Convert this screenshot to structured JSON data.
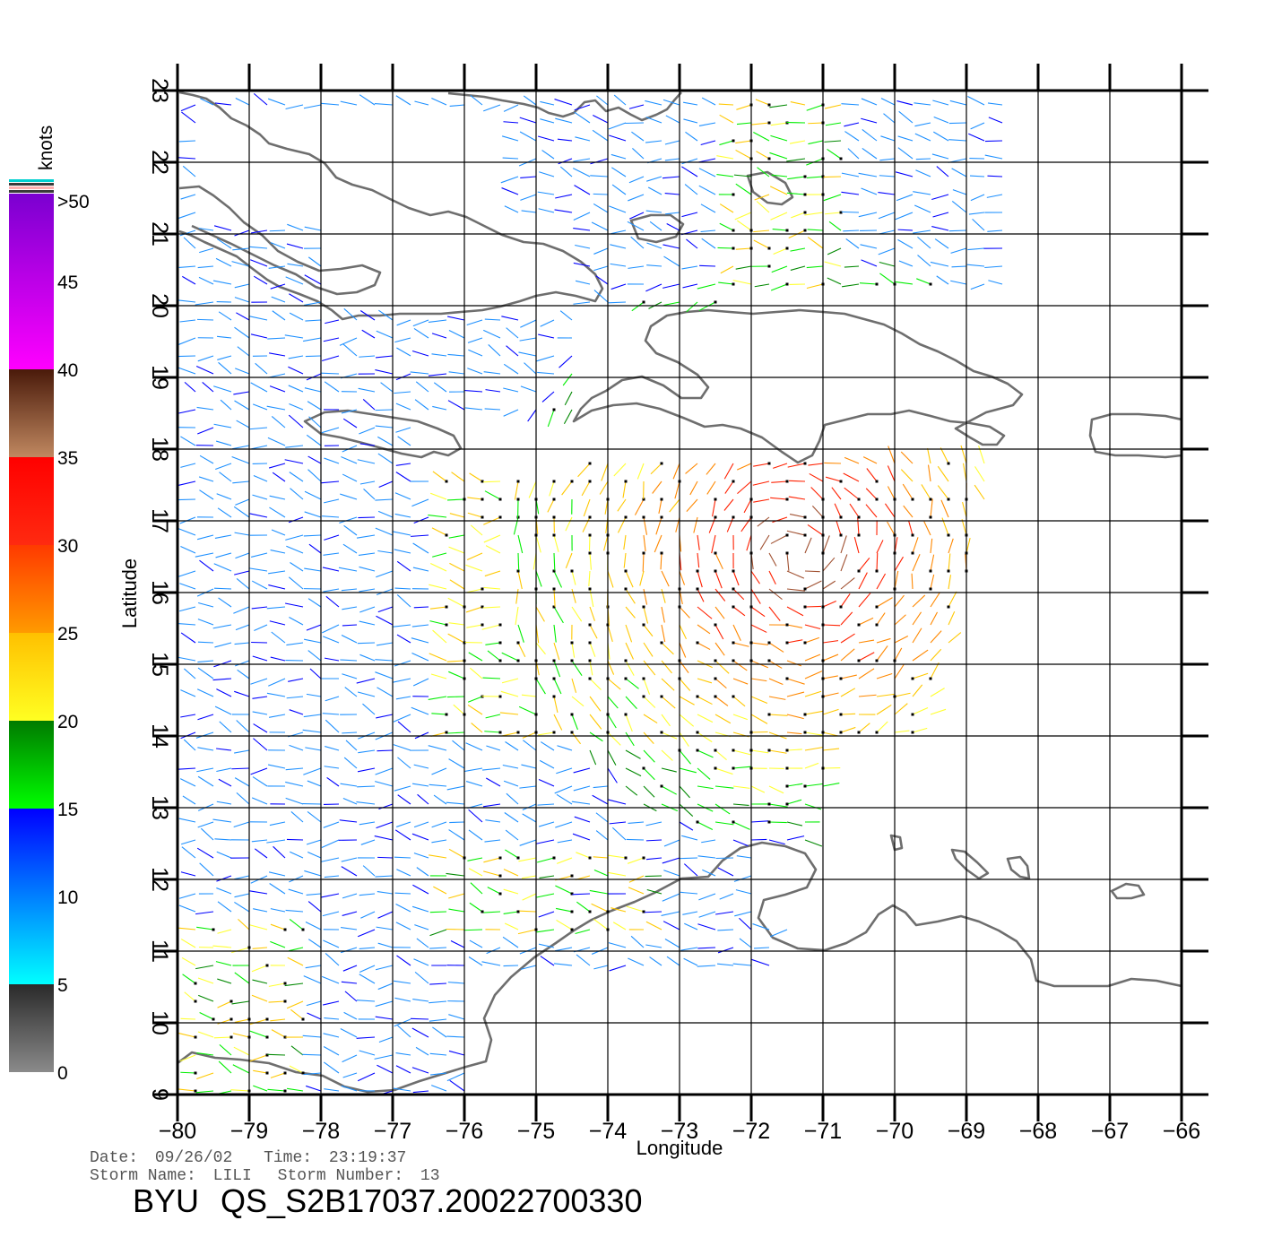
{
  "axes": {
    "x_title": "Longitude",
    "y_title": "Latitude",
    "lon_range": [
      -80,
      -66
    ],
    "lat_range": [
      9,
      23
    ],
    "x_ticks": [
      "−80",
      "−79",
      "−78",
      "−77",
      "−76",
      "−75",
      "−74",
      "−73",
      "−72",
      "−71",
      "−70",
      "−69",
      "−68",
      "−67",
      "−66"
    ],
    "y_ticks": [
      "9",
      "10",
      "11",
      "12",
      "13",
      "14",
      "15",
      "16",
      "17",
      "18",
      "19",
      "20",
      "21",
      "22",
      "23"
    ],
    "grid": true
  },
  "colorbar": {
    "unit": "knots",
    "labels": [
      ">50",
      "45",
      "40",
      "35",
      "30",
      "25",
      "20",
      "15",
      "10",
      "5",
      "0"
    ],
    "bands": [
      {
        "from": 0,
        "to": 5,
        "top": "#2a2a2a",
        "bottom": "#8a8a8a"
      },
      {
        "from": 5,
        "to": 15,
        "top": "#0000ff",
        "bottom": "#00ffff"
      },
      {
        "from": 15,
        "to": 20,
        "top": "#007a00",
        "bottom": "#00ff00"
      },
      {
        "from": 20,
        "to": 25,
        "top": "#ffc000",
        "bottom": "#ffff22"
      },
      {
        "from": 25,
        "to": 30,
        "top": "#ff3a00",
        "bottom": "#ff9a00"
      },
      {
        "from": 30,
        "to": 35,
        "top": "#ff0000",
        "bottom": "#ff2a10"
      },
      {
        "from": 35,
        "to": 40,
        "top": "#4a1a0a",
        "bottom": "#c08860"
      },
      {
        "from": 40,
        "to": 50,
        "top": "#7a00d0",
        "bottom": "#ff00ff"
      }
    ]
  },
  "info": {
    "date_label": "Date:",
    "date": "09/26/02",
    "time_label": "Time:",
    "time": "23:19:37",
    "storm_name_label": "Storm Name:",
    "storm_name": "LILI",
    "storm_number_label": "Storm Number:",
    "storm_number": "13"
  },
  "product": {
    "org": "BYU",
    "id": "QS_S2B17037.20022700330"
  }
}
